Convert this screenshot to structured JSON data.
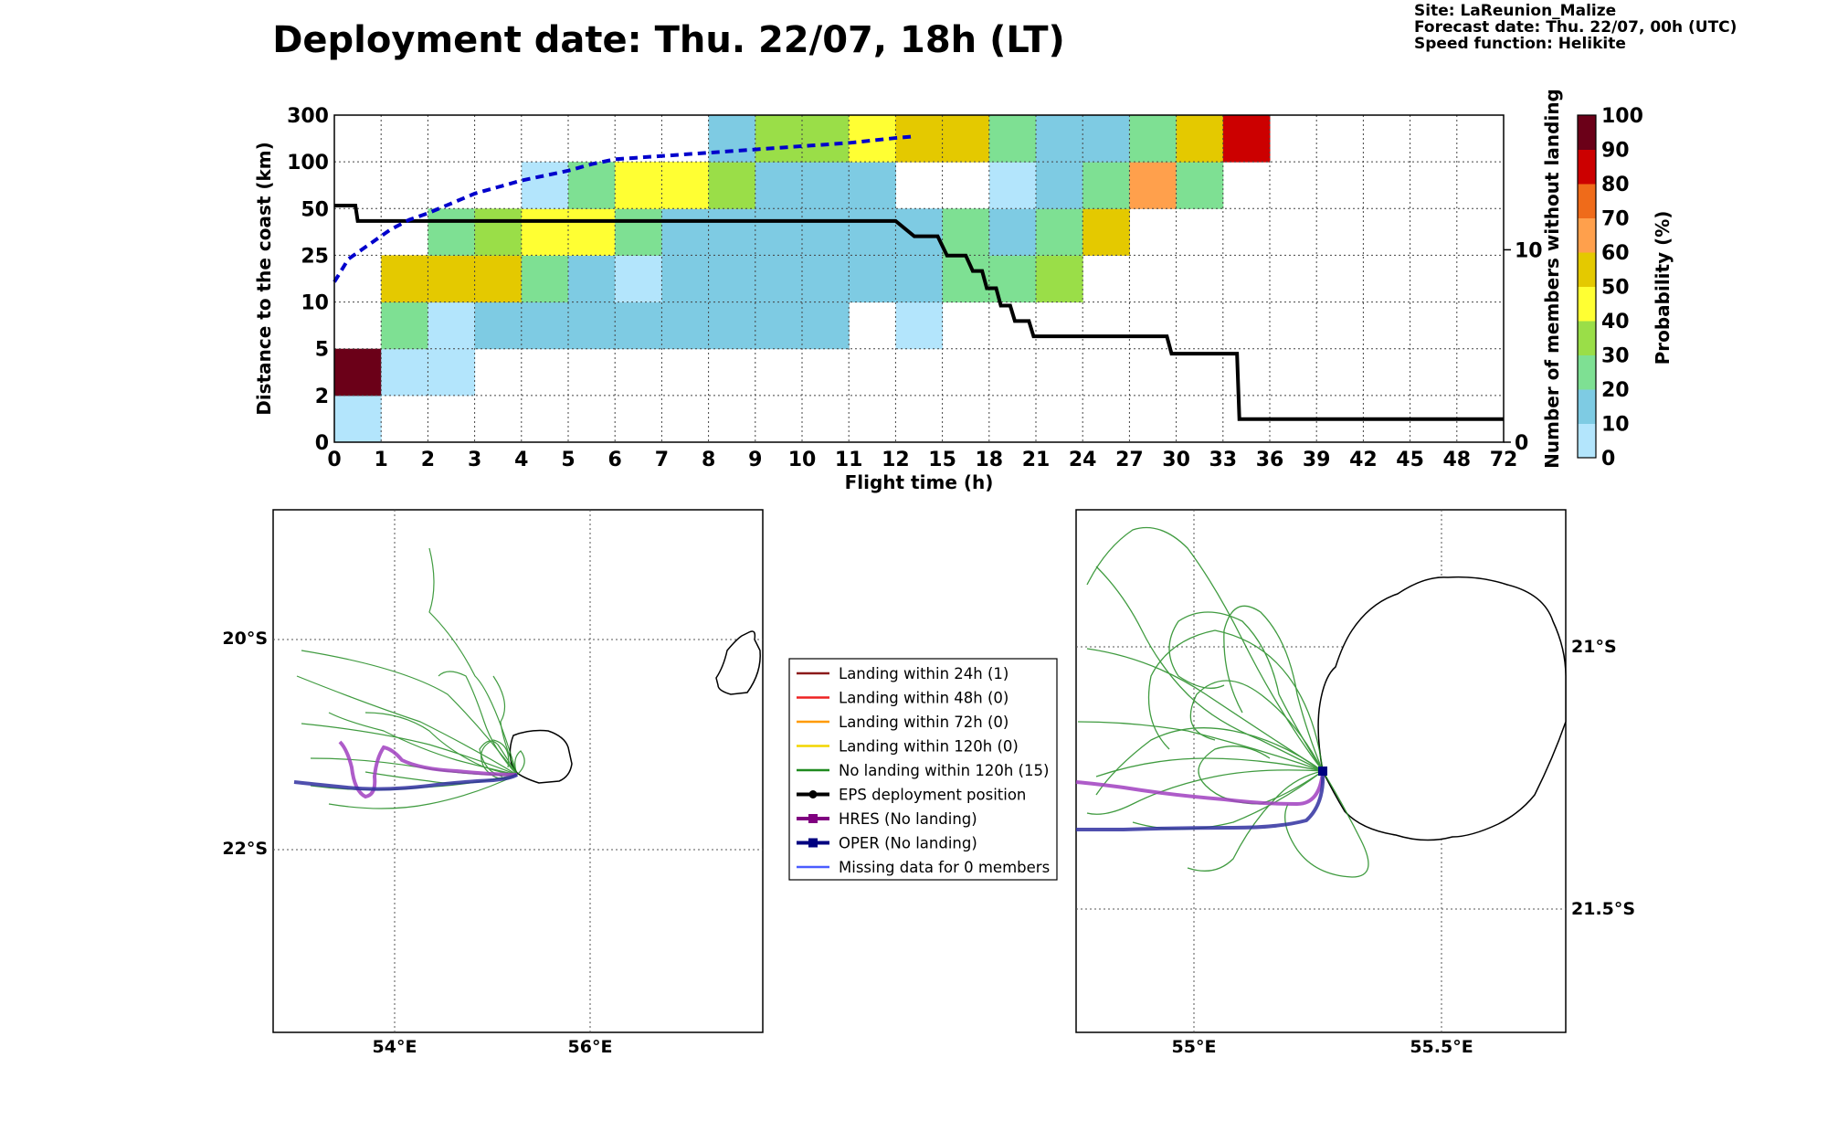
{
  "title": "Deployment date: Thu. 22/07, 18h (LT)",
  "info": {
    "site": "Site: LaReunion_Malize",
    "forecast": "Forecast date: Thu. 22/07, 00h (UTC)",
    "speed": "Speed function: Helikite"
  },
  "colors": {
    "prob_bins": [
      "#b3e5fc",
      "#7ecbe3",
      "#7ee093",
      "#9ade48",
      "#ffff33",
      "#e4c900",
      "#ffa04c",
      "#ef6b1a",
      "#cc0000",
      "#6b0018"
    ],
    "members_line": "#000000",
    "median_line": "#0000cc"
  },
  "chart_data": [
    {
      "type": "heatmap",
      "name": "distance-probability",
      "xlabel": "Flight time (h)",
      "ylabel": "Distance to the coast (km)",
      "y2label": "Number of members without landing",
      "colorbar_label": "Probability (%)",
      "x_ticks": [
        "0",
        "1",
        "2",
        "3",
        "4",
        "5",
        "6",
        "7",
        "8",
        "9",
        "10",
        "11",
        "12",
        "15",
        "18",
        "21",
        "24",
        "27",
        "30",
        "33",
        "36",
        "39",
        "42",
        "45",
        "48",
        "72"
      ],
      "y_ticks": [
        "0",
        "2",
        "5",
        "10",
        "25",
        "50",
        "100",
        "300"
      ],
      "y2_ticks": [
        "0",
        "10"
      ],
      "y2lim": [
        0,
        17
      ],
      "colorbar_ticks": [
        "0",
        "10",
        "20",
        "30",
        "40",
        "50",
        "60",
        "70",
        "80",
        "90",
        "100"
      ],
      "cells": [
        {
          "t": 0,
          "d": 0,
          "p": 5
        },
        {
          "t": 0,
          "d": 1,
          "p": 95
        },
        {
          "t": 1,
          "d": 1,
          "p": 5
        },
        {
          "t": 2,
          "d": 1,
          "p": 5
        },
        {
          "t": 1,
          "d": 2,
          "p": 25
        },
        {
          "t": 2,
          "d": 2,
          "p": 5
        },
        {
          "t": 3,
          "d": 2,
          "p": 15
        },
        {
          "t": 4,
          "d": 2,
          "p": 15
        },
        {
          "t": 5,
          "d": 2,
          "p": 15
        },
        {
          "t": 6,
          "d": 2,
          "p": 15
        },
        {
          "t": 7,
          "d": 2,
          "p": 15
        },
        {
          "t": 8,
          "d": 2,
          "p": 15
        },
        {
          "t": 9,
          "d": 2,
          "p": 15
        },
        {
          "t": 10,
          "d": 2,
          "p": 15
        },
        {
          "t": 12,
          "d": 2,
          "p": 5
        },
        {
          "t": 1,
          "d": 3,
          "p": 55
        },
        {
          "t": 2,
          "d": 3,
          "p": 55
        },
        {
          "t": 3,
          "d": 3,
          "p": 55
        },
        {
          "t": 4,
          "d": 3,
          "p": 25
        },
        {
          "t": 5,
          "d": 3,
          "p": 15
        },
        {
          "t": 6,
          "d": 3,
          "p": 5
        },
        {
          "t": 7,
          "d": 3,
          "p": 15
        },
        {
          "t": 8,
          "d": 3,
          "p": 15
        },
        {
          "t": 9,
          "d": 3,
          "p": 15
        },
        {
          "t": 10,
          "d": 3,
          "p": 15
        },
        {
          "t": 11,
          "d": 3,
          "p": 15
        },
        {
          "t": 12,
          "d": 3,
          "p": 15
        },
        {
          "t": 13,
          "d": 3,
          "p": 25
        },
        {
          "t": 14,
          "d": 3,
          "p": 25
        },
        {
          "t": 15,
          "d": 3,
          "p": 35
        },
        {
          "t": 2,
          "d": 4,
          "p": 25
        },
        {
          "t": 3,
          "d": 4,
          "p": 35
        },
        {
          "t": 4,
          "d": 4,
          "p": 45
        },
        {
          "t": 5,
          "d": 4,
          "p": 45
        },
        {
          "t": 6,
          "d": 4,
          "p": 25
        },
        {
          "t": 7,
          "d": 4,
          "p": 15
        },
        {
          "t": 8,
          "d": 4,
          "p": 15
        },
        {
          "t": 9,
          "d": 4,
          "p": 15
        },
        {
          "t": 10,
          "d": 4,
          "p": 15
        },
        {
          "t": 11,
          "d": 4,
          "p": 15
        },
        {
          "t": 12,
          "d": 4,
          "p": 15
        },
        {
          "t": 13,
          "d": 4,
          "p": 25
        },
        {
          "t": 14,
          "d": 4,
          "p": 15
        },
        {
          "t": 15,
          "d": 4,
          "p": 25
        },
        {
          "t": 16,
          "d": 4,
          "p": 55
        },
        {
          "t": 4,
          "d": 5,
          "p": 5
        },
        {
          "t": 5,
          "d": 5,
          "p": 25
        },
        {
          "t": 6,
          "d": 5,
          "p": 45
        },
        {
          "t": 7,
          "d": 5,
          "p": 45
        },
        {
          "t": 8,
          "d": 5,
          "p": 35
        },
        {
          "t": 9,
          "d": 5,
          "p": 15
        },
        {
          "t": 10,
          "d": 5,
          "p": 15
        },
        {
          "t": 11,
          "d": 5,
          "p": 15
        },
        {
          "t": 14,
          "d": 5,
          "p": 5
        },
        {
          "t": 15,
          "d": 5,
          "p": 15
        },
        {
          "t": 16,
          "d": 5,
          "p": 25
        },
        {
          "t": 17,
          "d": 5,
          "p": 65
        },
        {
          "t": 18,
          "d": 5,
          "p": 25
        },
        {
          "t": 8,
          "d": 6,
          "p": 15
        },
        {
          "t": 9,
          "d": 6,
          "p": 35
        },
        {
          "t": 10,
          "d": 6,
          "p": 35
        },
        {
          "t": 11,
          "d": 6,
          "p": 45
        },
        {
          "t": 12,
          "d": 6,
          "p": 55
        },
        {
          "t": 13,
          "d": 6,
          "p": 55
        },
        {
          "t": 14,
          "d": 6,
          "p": 25
        },
        {
          "t": 15,
          "d": 6,
          "p": 15
        },
        {
          "t": 16,
          "d": 6,
          "p": 15
        },
        {
          "t": 17,
          "d": 6,
          "p": 25
        },
        {
          "t": 18,
          "d": 6,
          "p": 55
        },
        {
          "t": 19,
          "d": 6,
          "p": 85
        }
      ],
      "members_step": [
        [
          0,
          12.3
        ],
        [
          0.45,
          12.3
        ],
        [
          0.5,
          11.5
        ],
        [
          12,
          11.5
        ],
        [
          12.4,
          10.7
        ],
        [
          12.9,
          10.7
        ],
        [
          13.1,
          9.7
        ],
        [
          13.5,
          9.7
        ],
        [
          13.65,
          8.9
        ],
        [
          13.85,
          8.9
        ],
        [
          13.95,
          8.0
        ],
        [
          14.15,
          8.0
        ],
        [
          14.25,
          7.1
        ],
        [
          14.45,
          7.1
        ],
        [
          14.55,
          6.3
        ],
        [
          14.85,
          6.3
        ],
        [
          14.95,
          5.5
        ],
        [
          17.8,
          5.5
        ],
        [
          17.9,
          4.6
        ],
        [
          19.3,
          4.6
        ],
        [
          19.35,
          1.2
        ],
        [
          25,
          1.2
        ]
      ],
      "median_distance": [
        [
          0,
          4.9
        ],
        [
          0.3,
          5.6
        ],
        [
          0.6,
          5.9
        ],
        [
          0.9,
          6.2
        ],
        [
          1.2,
          6.5
        ],
        [
          1.6,
          6.8
        ],
        [
          2.0,
          7.0
        ],
        [
          2.5,
          7.3
        ],
        [
          3.0,
          7.6
        ],
        [
          3.5,
          7.8
        ],
        [
          4.0,
          8.0
        ],
        [
          4.5,
          8.15
        ],
        [
          5.0,
          8.3
        ],
        [
          5.5,
          8.5
        ],
        [
          6.0,
          8.65
        ],
        [
          7.0,
          8.75
        ],
        [
          8.0,
          8.85
        ],
        [
          9.0,
          8.95
        ],
        [
          10.0,
          9.05
        ],
        [
          11.0,
          9.15
        ],
        [
          12.0,
          9.3
        ],
        [
          12.4,
          9.35
        ]
      ]
    }
  ],
  "maps": {
    "left": {
      "lon_labels": [
        "54°E",
        "56°E"
      ],
      "lat_labels": [
        "20°S",
        "22°S"
      ]
    },
    "right": {
      "lon_labels": [
        "55°E",
        "55.5°E"
      ],
      "lat_labels": [
        "21°S",
        "21.5°S"
      ]
    }
  },
  "legend": [
    {
      "label": "Landing within 24h (1)",
      "color": "#8b1a1a",
      "marker": "none"
    },
    {
      "label": "Landing within 48h (0)",
      "color": "#ee2222",
      "marker": "none"
    },
    {
      "label": "Landing within 72h (0)",
      "color": "#ff9a00",
      "marker": "none"
    },
    {
      "label": "Landing within 120h (0)",
      "color": "#f2d600",
      "marker": "none"
    },
    {
      "label": "No landing within 120h (15)",
      "color": "#1f8a1f",
      "marker": "none"
    },
    {
      "label": "EPS deployment position",
      "color": "#000000",
      "marker": "circle"
    },
    {
      "label": "HRES (No landing)",
      "color": "#800080",
      "marker": "square"
    },
    {
      "label": "OPER (No landing)",
      "color": "#000080",
      "marker": "square"
    },
    {
      "label": "Missing data for 0 members",
      "color": "#4a5cff",
      "marker": "none"
    }
  ]
}
